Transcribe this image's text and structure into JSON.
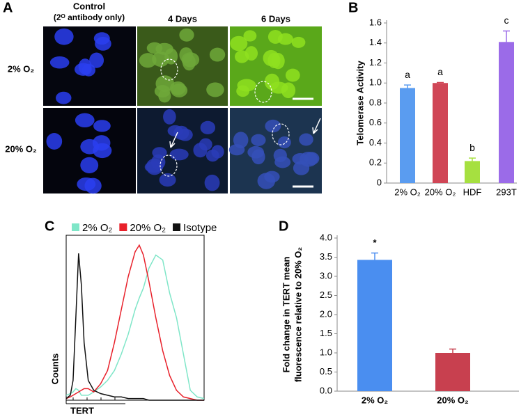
{
  "panel_a": {
    "letter": "A",
    "columns": [
      "Control",
      "4 Days",
      "6 Days"
    ],
    "control_note": "(2ᴼ antibody only)",
    "rows": [
      "2% O₂",
      "20% O₂"
    ]
  },
  "chart_data": [
    {
      "type": "bar",
      "letter": "B",
      "ylabel": "Telomerase Activity",
      "categories": [
        "2% O₂",
        "20% O₂",
        "HDF",
        "293T"
      ],
      "values": [
        0.95,
        1.0,
        0.22,
        1.41
      ],
      "errors": [
        0.03,
        0.005,
        0.03,
        0.11
      ],
      "colors": [
        "#5a9cf0",
        "#d04656",
        "#a6e040",
        "#9b6be8"
      ],
      "annotations": [
        "a",
        "a",
        "b",
        "c"
      ],
      "ylim": [
        0,
        1.6
      ],
      "yticks": [
        0,
        0.2,
        0.4,
        0.6,
        0.8,
        {
          "value": 1,
          "label": "1.0"
        },
        1.2,
        1.4,
        1.6
      ]
    },
    {
      "type": "line",
      "letter": "C",
      "xlabel": "TERT",
      "ylabel": "Counts",
      "x": [
        0,
        3,
        5,
        7,
        9,
        11,
        13,
        16,
        20,
        25,
        30,
        35,
        40,
        45,
        50,
        53,
        56,
        60,
        65,
        70,
        75,
        80,
        85,
        90,
        95,
        100
      ],
      "series": [
        {
          "name": "2% O₂",
          "color": "#7fe6c8",
          "values": [
            3,
            4,
            5,
            7,
            6,
            3,
            3,
            3,
            5,
            8,
            12,
            18,
            28,
            40,
            55,
            62,
            68,
            80,
            88,
            85,
            65,
            50,
            28,
            6,
            2,
            1
          ]
        },
        {
          "name": "20% O₂",
          "color": "#e8202a",
          "values": [
            1,
            2,
            3,
            4,
            5,
            6,
            7,
            7,
            5,
            10,
            18,
            35,
            55,
            75,
            90,
            94,
            88,
            72,
            50,
            30,
            15,
            6,
            2,
            1,
            0,
            0
          ]
        },
        {
          "name": "Isotype",
          "color": "#111111",
          "values": [
            1,
            3,
            12,
            50,
            89,
            70,
            35,
            12,
            6,
            4,
            3,
            2,
            2,
            1,
            1,
            1,
            1,
            0,
            0,
            0,
            0,
            0,
            0,
            0,
            0,
            0
          ]
        }
      ],
      "xlim": [
        0,
        100
      ],
      "ylim": [
        0,
        100
      ]
    },
    {
      "type": "bar",
      "letter": "D",
      "ylabel": [
        "Fold change in TERT mean",
        "fluorescence relative to 20% O₂"
      ],
      "categories": [
        "2% O₂",
        "20% O₂"
      ],
      "values": [
        3.43,
        1.0
      ],
      "errors": [
        0.18,
        0.1
      ],
      "colors": [
        "#4a8ef0",
        "#c8404f"
      ],
      "annotations": [
        "*",
        null
      ],
      "ylim": [
        0,
        4
      ],
      "yticks": [
        {
          "value": 0,
          "label": "0.0"
        },
        0.5,
        {
          "value": 1,
          "label": "1.0"
        },
        1.5,
        {
          "value": 2,
          "label": "2.0"
        },
        2.5,
        {
          "value": 3,
          "label": "3.0"
        },
        3.5,
        {
          "value": 4,
          "label": "4.0"
        }
      ]
    }
  ]
}
